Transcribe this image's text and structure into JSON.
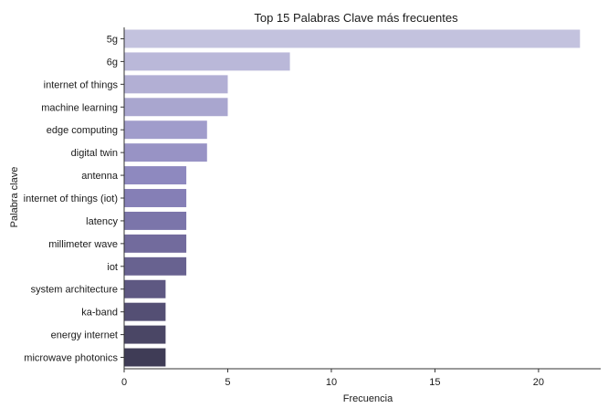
{
  "chart_data": {
    "type": "bar",
    "orientation": "horizontal",
    "title": "Top 15 Palabras Clave más frecuentes",
    "xlabel": "Frecuencia",
    "ylabel": "Palabra clave",
    "xlim": [
      0,
      23
    ],
    "xticks": [
      0,
      5,
      10,
      15,
      20
    ],
    "grid": false,
    "legend": "none",
    "categories": [
      "5g",
      "6g",
      "internet of things",
      "machine learning",
      "edge computing",
      "digital twin",
      "antenna",
      "internet of things (iot)",
      "latency",
      "millimeter wave",
      "iot",
      "system architecture",
      "ka-band",
      "energy internet",
      "microwave photonics"
    ],
    "values": [
      22,
      8,
      5,
      5,
      4,
      4,
      3,
      3,
      3,
      3,
      3,
      2,
      2,
      2,
      2
    ],
    "colors": [
      "#c3c2de",
      "#bab8d9",
      "#b2afd4",
      "#a9a6cf",
      "#a09ccb",
      "#9893c5",
      "#8e89bf",
      "#857fb6",
      "#7b75aa",
      "#726b9d",
      "#686290",
      "#5e5882",
      "#544f74",
      "#4a4665",
      "#3f3c56"
    ]
  }
}
